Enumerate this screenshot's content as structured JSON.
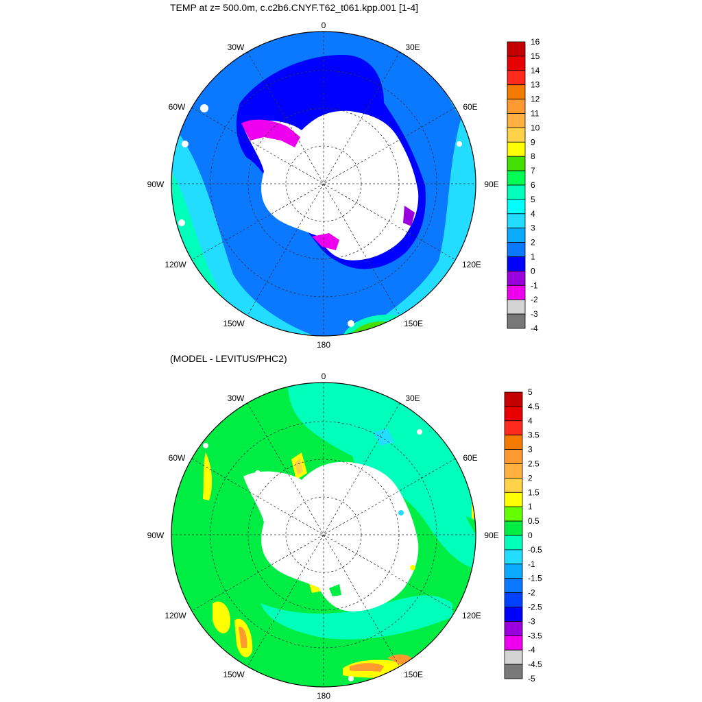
{
  "top_panel": {
    "title": "TEMP at z= 500.0m, c.c2b6.CNYF.T62_t061.kpp.001 [1-4]",
    "colorbar_labels": [
      "16",
      "15",
      "14",
      "13",
      "12",
      "11",
      "10",
      "9",
      "8",
      "7",
      "6",
      "5",
      "4",
      "3",
      "2",
      "1",
      "0",
      "-1",
      "-2",
      "-3",
      "-4"
    ],
    "colorbar_colors": [
      "#c40000",
      "#e60000",
      "#ff2a1e",
      "#f47a00",
      "#ff9a30",
      "#ffb040",
      "#ffd24a",
      "#ffff00",
      "#44e000",
      "#00ff55",
      "#00ffbb",
      "#00ffff",
      "#22ddff",
      "#0aaaff",
      "#0a78ff",
      "#0000ff",
      "#9a00dd",
      "#ee00ee",
      "#d4d4d4",
      "#787878"
    ]
  },
  "bottom_panel": {
    "title": "(MODEL - LEVITUS/PHC2)",
    "colorbar_labels": [
      "5",
      "4.5",
      "4",
      "3.5",
      "3",
      "2.5",
      "2",
      "1.5",
      "1",
      "0.5",
      "0",
      "-0.5",
      "-1",
      "-1.5",
      "-2",
      "-2.5",
      "-3",
      "-3.5",
      "-4",
      "-4.5",
      "-5"
    ],
    "colorbar_colors": [
      "#c40000",
      "#e60000",
      "#ff2a1e",
      "#f47a00",
      "#ff9a30",
      "#ffb040",
      "#ffd24a",
      "#ffff00",
      "#66ff00",
      "#00ee44",
      "#00ffbb",
      "#22ddff",
      "#0aaaff",
      "#0a78ff",
      "#0040ff",
      "#0000ff",
      "#9a00dd",
      "#ee00ee",
      "#d4d4d4",
      "#787878"
    ]
  },
  "longitude_labels": {
    "lon_0": "0",
    "lon_30e": "30E",
    "lon_60e": "60E",
    "lon_90e": "90E",
    "lon_120e": "120E",
    "lon_150e": "150E",
    "lon_180": "180",
    "lon_150w": "150W",
    "lon_120w": "120W",
    "lon_90w": "90W",
    "lon_60w": "60W",
    "lon_30w": "30W"
  }
}
